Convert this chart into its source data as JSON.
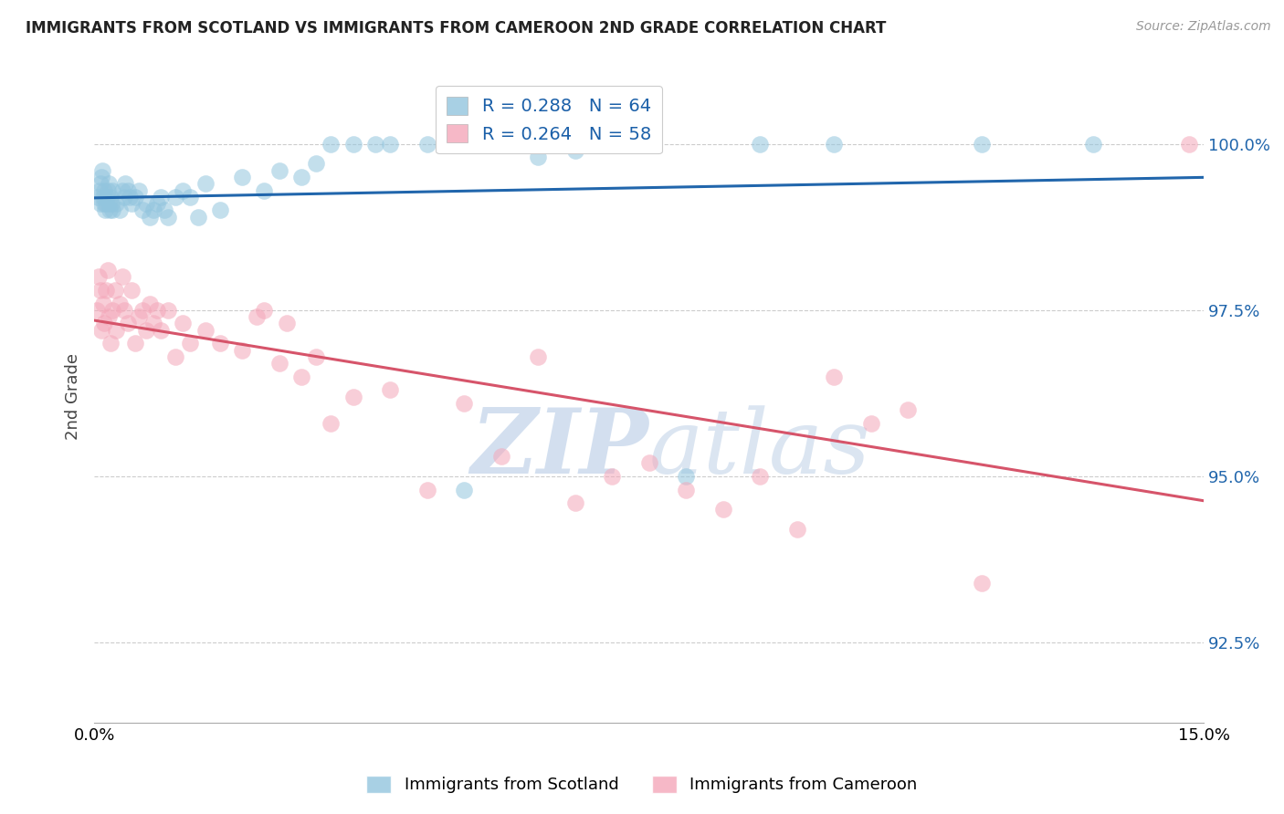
{
  "title": "IMMIGRANTS FROM SCOTLAND VS IMMIGRANTS FROM CAMEROON 2ND GRADE CORRELATION CHART",
  "source": "Source: ZipAtlas.com",
  "ylabel": "2nd Grade",
  "yticks": [
    92.5,
    95.0,
    97.5,
    100.0
  ],
  "ytick_labels": [
    "92.5%",
    "95.0%",
    "97.5%",
    "100.0%"
  ],
  "xmin": 0.0,
  "xmax": 15.0,
  "ymin": 91.3,
  "ymax": 101.1,
  "scotland_color": "#92c5de",
  "cameroon_color": "#f4a7b9",
  "scotland_R": 0.288,
  "scotland_N": 64,
  "cameroon_R": 0.264,
  "cameroon_N": 58,
  "scotland_line_color": "#2166ac",
  "cameroon_line_color": "#d6546a",
  "legend_text_color": "#1a5fa8",
  "watermark_zip": "ZIP",
  "watermark_atlas": "atlas",
  "scotland_x": [
    0.05,
    0.07,
    0.08,
    0.09,
    0.1,
    0.11,
    0.12,
    0.13,
    0.14,
    0.15,
    0.16,
    0.17,
    0.18,
    0.19,
    0.2,
    0.21,
    0.22,
    0.23,
    0.24,
    0.25,
    0.3,
    0.35,
    0.38,
    0.4,
    0.42,
    0.45,
    0.48,
    0.5,
    0.55,
    0.6,
    0.65,
    0.7,
    0.75,
    0.8,
    0.85,
    0.9,
    0.95,
    1.0,
    1.1,
    1.2,
    1.3,
    1.4,
    1.5,
    1.7,
    2.0,
    2.3,
    2.5,
    2.8,
    3.0,
    3.2,
    3.5,
    3.8,
    4.0,
    4.5,
    5.0,
    5.5,
    6.0,
    6.5,
    7.5,
    8.0,
    9.0,
    10.0,
    12.0,
    13.5
  ],
  "scotland_y": [
    99.2,
    99.3,
    99.1,
    99.4,
    99.5,
    99.6,
    99.2,
    99.3,
    99.1,
    99.0,
    99.1,
    99.2,
    99.3,
    99.4,
    99.1,
    99.0,
    99.2,
    99.1,
    99.3,
    99.0,
    99.1,
    99.0,
    99.3,
    99.2,
    99.4,
    99.3,
    99.2,
    99.1,
    99.2,
    99.3,
    99.0,
    99.1,
    98.9,
    99.0,
    99.1,
    99.2,
    99.0,
    98.9,
    99.2,
    99.3,
    99.2,
    98.9,
    99.4,
    99.0,
    99.5,
    99.3,
    99.6,
    99.5,
    99.7,
    100.0,
    100.0,
    100.0,
    100.0,
    100.0,
    94.8,
    100.0,
    99.8,
    99.9,
    100.0,
    95.0,
    100.0,
    100.0,
    100.0,
    100.0
  ],
  "cameroon_x": [
    0.04,
    0.06,
    0.08,
    0.1,
    0.12,
    0.14,
    0.16,
    0.18,
    0.2,
    0.22,
    0.25,
    0.28,
    0.3,
    0.35,
    0.38,
    0.4,
    0.45,
    0.5,
    0.55,
    0.6,
    0.65,
    0.7,
    0.75,
    0.8,
    0.85,
    0.9,
    1.0,
    1.1,
    1.2,
    1.3,
    1.5,
    1.7,
    2.0,
    2.2,
    2.3,
    2.5,
    2.6,
    2.8,
    3.0,
    3.2,
    3.5,
    4.0,
    4.5,
    5.0,
    5.5,
    6.0,
    6.5,
    7.0,
    7.5,
    8.0,
    8.5,
    9.0,
    9.5,
    10.0,
    10.5,
    11.0,
    12.0,
    14.8
  ],
  "cameroon_y": [
    97.5,
    98.0,
    97.8,
    97.2,
    97.6,
    97.3,
    97.8,
    98.1,
    97.4,
    97.0,
    97.5,
    97.8,
    97.2,
    97.6,
    98.0,
    97.5,
    97.3,
    97.8,
    97.0,
    97.4,
    97.5,
    97.2,
    97.6,
    97.3,
    97.5,
    97.2,
    97.5,
    96.8,
    97.3,
    97.0,
    97.2,
    97.0,
    96.9,
    97.4,
    97.5,
    96.7,
    97.3,
    96.5,
    96.8,
    95.8,
    96.2,
    96.3,
    94.8,
    96.1,
    95.3,
    96.8,
    94.6,
    95.0,
    95.2,
    94.8,
    94.5,
    95.0,
    94.2,
    96.5,
    95.8,
    96.0,
    93.4,
    100.0
  ]
}
